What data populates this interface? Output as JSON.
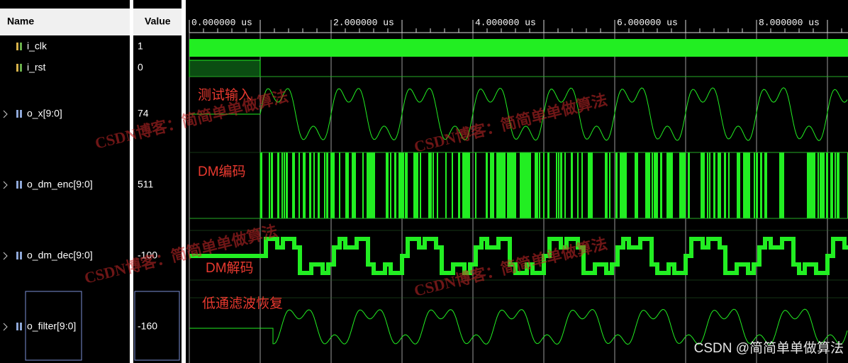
{
  "header": {
    "name_column": "Name",
    "value_column": "Value"
  },
  "signals": [
    {
      "name": "i_clk",
      "value": "1"
    },
    {
      "name": "i_rst",
      "value": "0"
    },
    {
      "name": "o_x[9:0]",
      "value": "74"
    },
    {
      "name": "o_dm_enc[9:0]",
      "value": "511"
    },
    {
      "name": "o_dm_dec[9:0]",
      "value": "-100"
    },
    {
      "name": "o_filter[9:0]",
      "value": "-160"
    }
  ],
  "ruler": [
    "0.000000 us",
    "2.000000 us",
    "4.000000 us",
    "6.000000 us",
    "8.000000 us"
  ],
  "annotations": [
    "测试输入",
    "DM编码",
    "DM解码",
    "低通滤波恢复"
  ],
  "watermarks": [
    "CSDN博客：简简单单做算法",
    "CSDN博客：简简单单做算法",
    "CSDN博客：简简单单做算法",
    "CSDN博客：简简单单做算法"
  ],
  "footer": "CSDN @简简单单做算法"
}
